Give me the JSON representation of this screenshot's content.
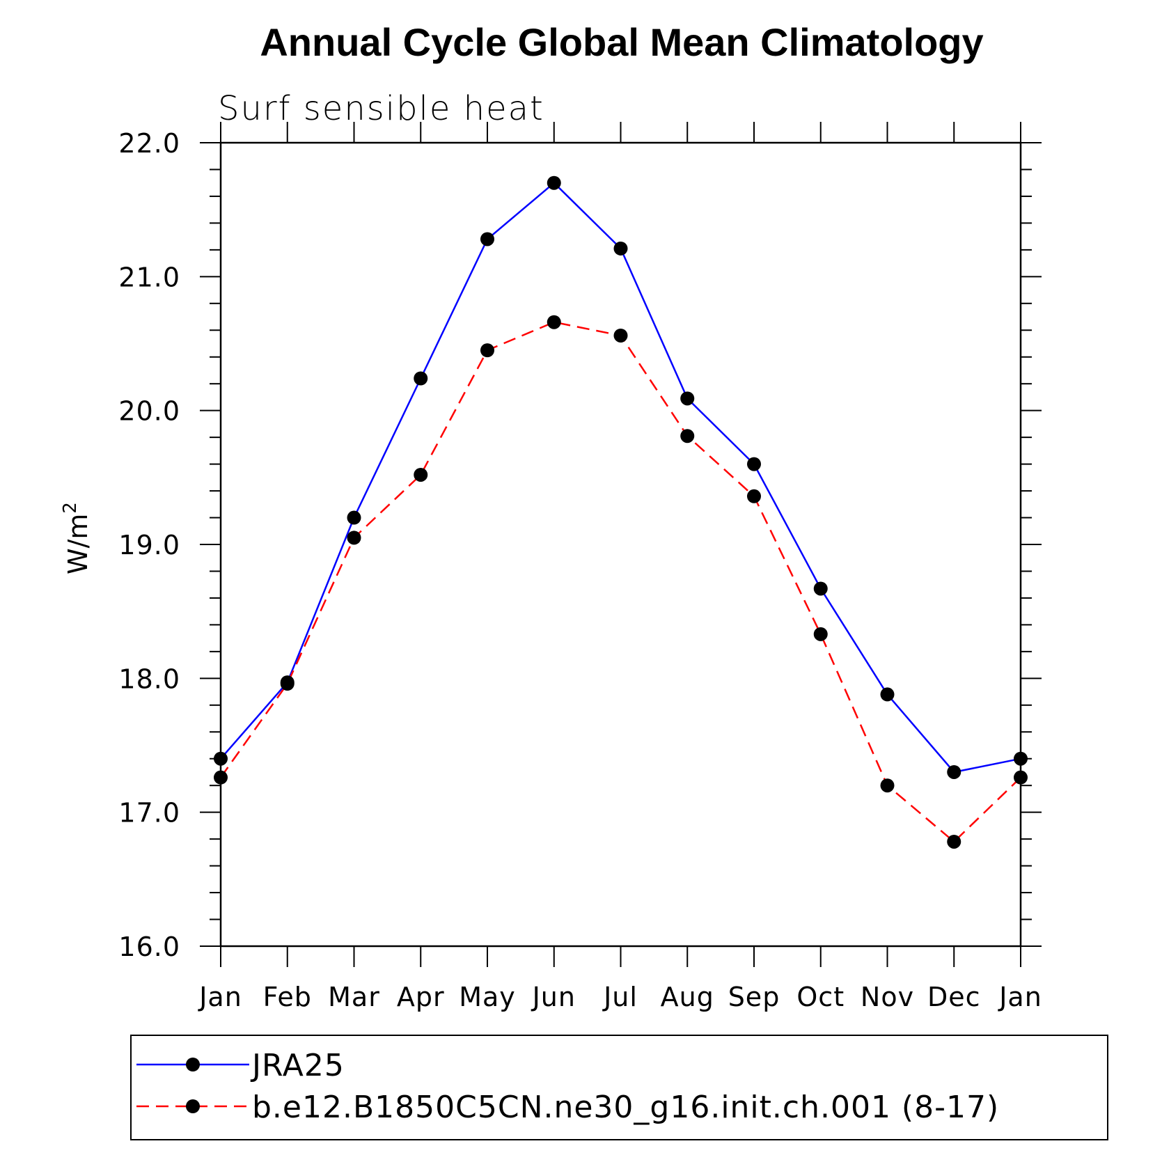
{
  "chart_data": {
    "type": "line",
    "title": "Annual Cycle Global Mean Climatology",
    "subtitle": "Surf sensible heat",
    "ylabel": "W/m",
    "ylabel_sup": "2",
    "xlabel": "",
    "categories": [
      "Jan",
      "Feb",
      "Mar",
      "Apr",
      "May",
      "Jun",
      "Jul",
      "Aug",
      "Sep",
      "Oct",
      "Nov",
      "Dec",
      "Jan"
    ],
    "ylim": [
      16.0,
      22.0
    ],
    "yticks": [
      "16.0",
      "17.0",
      "18.0",
      "19.0",
      "20.0",
      "21.0",
      "22.0"
    ],
    "grid": false,
    "legend_position": "bottom",
    "series": [
      {
        "name": "JRA25",
        "color": "#0000ff",
        "dash": "solid",
        "marker": "filled-circle",
        "values": [
          17.4,
          17.97,
          19.2,
          20.24,
          21.28,
          21.7,
          21.21,
          20.09,
          19.6,
          18.67,
          17.88,
          17.3,
          17.4
        ]
      },
      {
        "name": "b.e12.B1850C5CN.ne30_g16.init.ch.001 (8-17)",
        "color": "#ff0000",
        "dash": "dashed",
        "marker": "filled-circle",
        "values": [
          17.26,
          17.96,
          19.05,
          19.52,
          20.45,
          20.66,
          20.56,
          19.81,
          19.36,
          18.33,
          17.2,
          16.78,
          17.26
        ]
      }
    ]
  }
}
